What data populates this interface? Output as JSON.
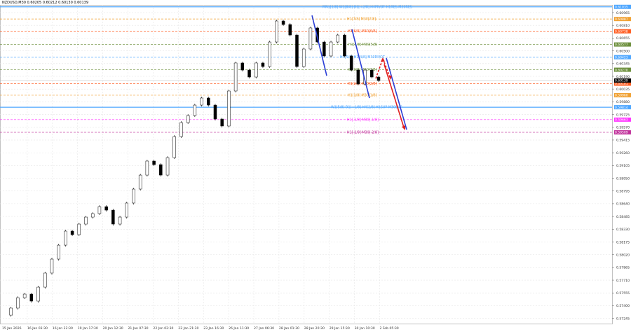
{
  "window": {
    "title": "NZDUSD,M30  0.60205 0.60212 0.60130 0.60139"
  },
  "chart_data": {
    "type": "candlestick",
    "symbol": "NZDUSD",
    "timeframe": "M30",
    "ohlc_header": {
      "open": 0.60205,
      "high": 0.60212,
      "low": 0.6013,
      "close": 0.60139
    },
    "x_ticks": [
      "15 Jan 2026",
      "16 Jan 03:30",
      "16 Jan 22:30",
      "19 Jan 17:30",
      "20 Jan 12:30",
      "21 Jan 07:30",
      "22 Jan 02:30",
      "22 Jan 21:30",
      "23 Jan 16:30",
      "26 Jan 11:30",
      "27 Jan 06:30",
      "28 Jan 01:30",
      "28 Jan 20:30",
      "29 Jan 15:30",
      "30 Jan 10:30",
      "2 Feb 05:30"
    ],
    "y_ticks": [
      "0.60965",
      "0.60810",
      "0.60655",
      "0.60500",
      "0.60345",
      "0.60190",
      "0.60035",
      "0.59880",
      "0.59725",
      "0.59570",
      "0.59415",
      "0.59260",
      "0.59105",
      "0.58950",
      "0.58795",
      "0.58640",
      "0.58485",
      "0.58330",
      "0.58175",
      "0.58020",
      "0.57865",
      "0.57710",
      "0.57555",
      "0.57400",
      "0.57245"
    ],
    "ylim": [
      0.5718,
      0.611
    ],
    "grid": true,
    "closes": [
      0.57284,
      0.5737,
      0.57497,
      0.5754,
      0.57455,
      0.57625,
      0.57796,
      0.57966,
      0.58136,
      0.58307,
      0.58264,
      0.58392,
      0.58477,
      0.5852,
      0.58605,
      0.58562,
      0.58392,
      0.58477,
      0.58648,
      0.58818,
      0.58988,
      0.59159,
      0.59116,
      0.58988,
      0.59201,
      0.59457,
      0.59627,
      0.59713,
      0.5984,
      0.59926,
      0.5984,
      0.5967,
      0.59585,
      0.60011,
      0.60352,
      0.60266,
      0.60181,
      0.60352,
      0.60309,
      0.60607,
      0.60863,
      0.6082,
      0.60692,
      0.60309,
      0.60522,
      0.60778,
      0.60607,
      0.60437,
      0.60607,
      0.60692,
      0.60437,
      0.60266,
      0.60096,
      0.60266,
      0.60181,
      0.60139
    ],
    "levels": [
      {
        "price": 0.61035,
        "price_label": "0.61035",
        "label": "MN1[1/8] W1[8/8] D1[+2/8] H4PIVOT H1RES M30RES",
        "color": "#4da6ff"
      },
      {
        "price": 0.60887,
        "price_label": "0.60887",
        "label": "H1[7/8] M30[7/8]",
        "color": "#f0a030"
      },
      {
        "price": 0.60738,
        "price_label": "0.60738",
        "label": "H1[6/8] M30[6/8]",
        "color": "#ff5a1e"
      },
      {
        "price": 0.60577,
        "price_label": "0.60577",
        "label": "H1[5/8] M30[5/8]",
        "color": "#6b8e3a"
      },
      {
        "price": 0.60423,
        "price_label": "0.60423",
        "label": "H4[5/8] H1[4/8] M30PIVOT",
        "color": "#4da6ff"
      },
      {
        "price": 0.6027,
        "price_label": "0.60270",
        "label": "H1[3/8] M30[3/8]",
        "color": "#6b8e3a"
      },
      {
        "price": 0.60101,
        "price_label": "0.60101",
        "label": "H1[2/8] M30[2/8]",
        "color": "#ff5a1e"
      },
      {
        "price": 0.5996,
        "price_label": "0.59960",
        "label": "H1[1/8] M30[1/8]",
        "color": "#f0a030"
      },
      {
        "price": 0.59814,
        "price_label": "0.59814",
        "label": "W1[5/8] D1[+1/8] H4[2/8] H1SUP M30SUP",
        "color": "#4da6ff"
      },
      {
        "price": 0.59663,
        "price_label": "0.59663",
        "label": "H1[-1/8] M30[-1/8]",
        "color": "#ff33ff"
      },
      {
        "price": 0.59509,
        "price_label": "0.59509",
        "label": "H1[-2/8] M30[-2/8]",
        "color": "#c0309a"
      }
    ],
    "current_price": {
      "price": 0.60139,
      "price_label": "0.60139",
      "color": "#000000"
    },
    "colors": {
      "candle": "#000000",
      "grid": "#e6e6e6",
      "trendline": "#2b3fd6",
      "projection": "#e02020"
    }
  }
}
